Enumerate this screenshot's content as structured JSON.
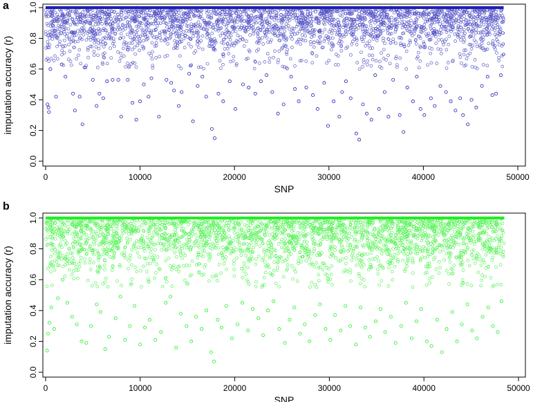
{
  "chart_data": [
    {
      "panel": "a",
      "type": "scatter",
      "title": "",
      "xlabel": "SNP",
      "ylabel": "imputation accuracy (r)",
      "xlim": [
        0,
        50000
      ],
      "ylim": [
        0,
        1
      ],
      "xticks": [
        0,
        10000,
        20000,
        30000,
        40000,
        50000
      ],
      "xtick_labels": [
        "0",
        "10000",
        "20000",
        "30000",
        "40000",
        "50000"
      ],
      "yticks": [
        0,
        0.2,
        0.4,
        0.6,
        0.8,
        1.0
      ],
      "ytick_labels": [
        "0.0",
        "0.2",
        "0.4",
        "0.6",
        "0.8",
        "1.0"
      ],
      "color": "#1f1fb4",
      "marker": "open-circle",
      "n_snps": 48500,
      "summary": {
        "max": 1.0,
        "dense_band": [
          0.75,
          1.0
        ]
      },
      "points": [
        [
          200,
          0.37
        ],
        [
          300,
          0.35
        ],
        [
          350,
          0.32
        ],
        [
          500,
          0.6
        ],
        [
          1100,
          0.42
        ],
        [
          1700,
          0.63
        ],
        [
          2100,
          0.55
        ],
        [
          2900,
          0.44
        ],
        [
          3100,
          0.33
        ],
        [
          3600,
          0.42
        ],
        [
          3900,
          0.24
        ],
        [
          4200,
          0.61
        ],
        [
          5000,
          0.53
        ],
        [
          5400,
          0.36
        ],
        [
          5700,
          0.44
        ],
        [
          6100,
          0.41
        ],
        [
          6500,
          0.52
        ],
        [
          7100,
          0.53
        ],
        [
          7700,
          0.53
        ],
        [
          8000,
          0.29
        ],
        [
          8700,
          0.53
        ],
        [
          9200,
          0.38
        ],
        [
          9600,
          0.27
        ],
        [
          10000,
          0.39
        ],
        [
          10400,
          0.5
        ],
        [
          10900,
          0.42
        ],
        [
          11200,
          0.54
        ],
        [
          12000,
          0.29
        ],
        [
          12800,
          0.53
        ],
        [
          13300,
          0.51
        ],
        [
          13600,
          0.46
        ],
        [
          14100,
          0.36
        ],
        [
          14400,
          0.45
        ],
        [
          15200,
          0.57
        ],
        [
          15600,
          0.26
        ],
        [
          16100,
          0.49
        ],
        [
          16600,
          0.55
        ],
        [
          17000,
          0.42
        ],
        [
          17600,
          0.21
        ],
        [
          17900,
          0.15
        ],
        [
          18300,
          0.44
        ],
        [
          18800,
          0.39
        ],
        [
          19500,
          0.52
        ],
        [
          20100,
          0.34
        ],
        [
          20900,
          0.5
        ],
        [
          21500,
          0.48
        ],
        [
          22200,
          0.44
        ],
        [
          22800,
          0.52
        ],
        [
          23400,
          0.56
        ],
        [
          24000,
          0.45
        ],
        [
          24600,
          0.31
        ],
        [
          25200,
          0.37
        ],
        [
          26000,
          0.55
        ],
        [
          26400,
          0.47
        ],
        [
          26800,
          0.39
        ],
        [
          27600,
          0.48
        ],
        [
          28300,
          0.43
        ],
        [
          28800,
          0.34
        ],
        [
          29500,
          0.51
        ],
        [
          29900,
          0.23
        ],
        [
          30500,
          0.39
        ],
        [
          31100,
          0.29
        ],
        [
          31400,
          0.45
        ],
        [
          31800,
          0.52
        ],
        [
          32300,
          0.41
        ],
        [
          32900,
          0.18
        ],
        [
          33200,
          0.14
        ],
        [
          33600,
          0.37
        ],
        [
          34000,
          0.31
        ],
        [
          34500,
          0.27
        ],
        [
          34900,
          0.56
        ],
        [
          35300,
          0.34
        ],
        [
          35900,
          0.45
        ],
        [
          36300,
          0.29
        ],
        [
          36800,
          0.53
        ],
        [
          37500,
          0.3
        ],
        [
          37900,
          0.19
        ],
        [
          38300,
          0.48
        ],
        [
          38900,
          0.39
        ],
        [
          39300,
          0.55
        ],
        [
          39700,
          0.34
        ],
        [
          40100,
          0.3
        ],
        [
          40800,
          0.41
        ],
        [
          41200,
          0.36
        ],
        [
          41800,
          0.49
        ],
        [
          42400,
          0.45
        ],
        [
          42900,
          0.39
        ],
        [
          43400,
          0.33
        ],
        [
          43900,
          0.41
        ],
        [
          44200,
          0.3
        ],
        [
          44700,
          0.24
        ],
        [
          45100,
          0.4
        ],
        [
          45600,
          0.35
        ],
        [
          46200,
          0.49
        ],
        [
          46800,
          0.55
        ],
        [
          47300,
          0.43
        ],
        [
          47700,
          0.44
        ],
        [
          48200,
          0.56
        ]
      ]
    },
    {
      "panel": "b",
      "type": "scatter",
      "title": "",
      "xlabel": "SNP",
      "ylabel": "imputation accuracy (r)",
      "xlim": [
        0,
        50000
      ],
      "ylim": [
        0,
        1
      ],
      "xticks": [
        0,
        10000,
        20000,
        30000,
        40000,
        50000
      ],
      "xtick_labels": [
        "0",
        "10000",
        "20000",
        "30000",
        "40000",
        "50000"
      ],
      "yticks": [
        0,
        0.2,
        0.4,
        0.6,
        0.8,
        1.0
      ],
      "ytick_labels": [
        "0.0",
        "0.2",
        "0.4",
        "0.6",
        "0.8",
        "1.0"
      ],
      "color": "#22ee22",
      "marker": "open-circle",
      "n_snps": 48500,
      "summary": {
        "max": 1.0,
        "dense_band": [
          0.7,
          1.0
        ]
      },
      "points": [
        [
          150,
          0.14
        ],
        [
          250,
          0.25
        ],
        [
          400,
          0.32
        ],
        [
          600,
          0.42
        ],
        [
          900,
          0.28
        ],
        [
          1300,
          0.48
        ],
        [
          1800,
          0.6
        ],
        [
          2300,
          0.45
        ],
        [
          2800,
          0.36
        ],
        [
          3300,
          0.31
        ],
        [
          3800,
          0.2
        ],
        [
          4300,
          0.19
        ],
        [
          4800,
          0.3
        ],
        [
          5400,
          0.44
        ],
        [
          5800,
          0.39
        ],
        [
          6300,
          0.15
        ],
        [
          6700,
          0.23
        ],
        [
          7400,
          0.35
        ],
        [
          7900,
          0.49
        ],
        [
          8400,
          0.21
        ],
        [
          8900,
          0.3
        ],
        [
          9400,
          0.43
        ],
        [
          10000,
          0.18
        ],
        [
          10500,
          0.29
        ],
        [
          11000,
          0.34
        ],
        [
          11600,
          0.21
        ],
        [
          12200,
          0.26
        ],
        [
          12700,
          0.45
        ],
        [
          13200,
          0.49
        ],
        [
          13800,
          0.16
        ],
        [
          14300,
          0.38
        ],
        [
          14900,
          0.3
        ],
        [
          15400,
          0.2
        ],
        [
          15900,
          0.36
        ],
        [
          16500,
          0.28
        ],
        [
          17000,
          0.4
        ],
        [
          17500,
          0.13
        ],
        [
          17800,
          0.07
        ],
        [
          18200,
          0.34
        ],
        [
          18600,
          0.29
        ],
        [
          19100,
          0.43
        ],
        [
          19700,
          0.22
        ],
        [
          20300,
          0.31
        ],
        [
          20800,
          0.45
        ],
        [
          21400,
          0.27
        ],
        [
          21900,
          0.41
        ],
        [
          22500,
          0.35
        ],
        [
          23000,
          0.24
        ],
        [
          23500,
          0.4
        ],
        [
          24100,
          0.46
        ],
        [
          24700,
          0.28
        ],
        [
          25300,
          0.19
        ],
        [
          25800,
          0.34
        ],
        [
          26300,
          0.42
        ],
        [
          26900,
          0.25
        ],
        [
          27400,
          0.31
        ],
        [
          27900,
          0.2
        ],
        [
          28500,
          0.37
        ],
        [
          29000,
          0.44
        ],
        [
          29600,
          0.28
        ],
        [
          30100,
          0.21
        ],
        [
          30600,
          0.37
        ],
        [
          31200,
          0.27
        ],
        [
          31700,
          0.43
        ],
        [
          32200,
          0.3
        ],
        [
          32800,
          0.18
        ],
        [
          33300,
          0.42
        ],
        [
          33800,
          0.29
        ],
        [
          34300,
          0.23
        ],
        [
          34900,
          0.33
        ],
        [
          35400,
          0.41
        ],
        [
          35900,
          0.26
        ],
        [
          36500,
          0.36
        ],
        [
          37000,
          0.19
        ],
        [
          37600,
          0.3
        ],
        [
          38100,
          0.45
        ],
        [
          38700,
          0.22
        ],
        [
          39200,
          0.33
        ],
        [
          39700,
          0.41
        ],
        [
          40300,
          0.2
        ],
        [
          40800,
          0.17
        ],
        [
          41400,
          0.34
        ],
        [
          41900,
          0.13
        ],
        [
          42400,
          0.28
        ],
        [
          43000,
          0.39
        ],
        [
          43500,
          0.2
        ],
        [
          44000,
          0.31
        ],
        [
          44600,
          0.44
        ],
        [
          45100,
          0.27
        ],
        [
          45600,
          0.22
        ],
        [
          46200,
          0.36
        ],
        [
          46800,
          0.42
        ],
        [
          47300,
          0.3
        ],
        [
          47800,
          0.26
        ],
        [
          48200,
          0.46
        ]
      ]
    }
  ]
}
